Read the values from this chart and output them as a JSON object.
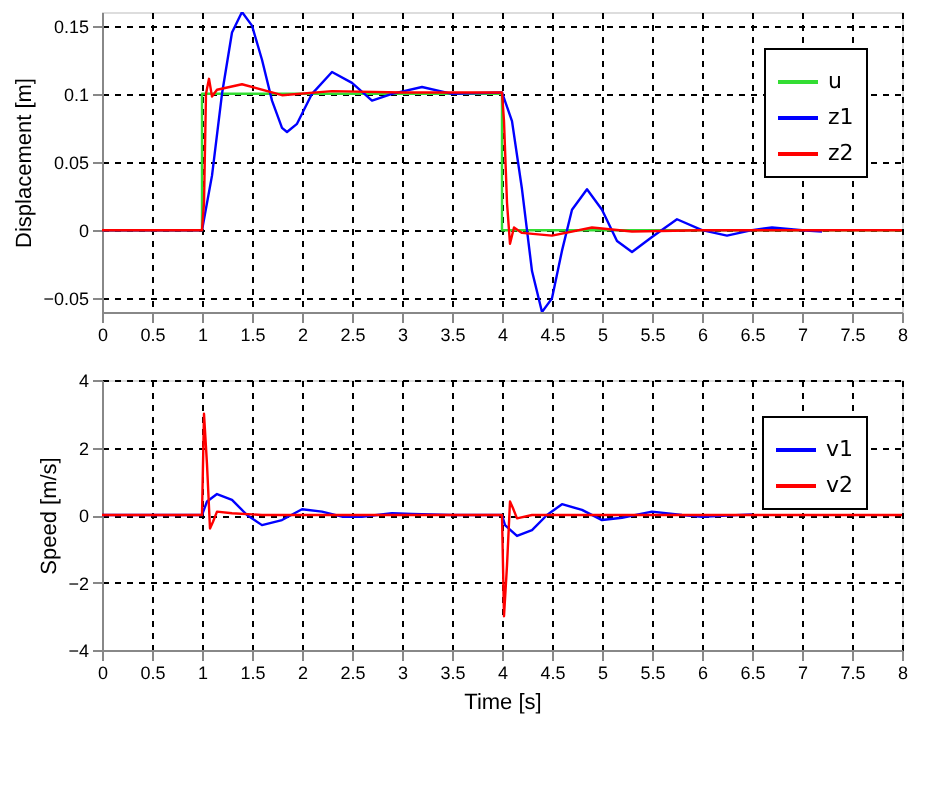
{
  "chart_data": [
    {
      "type": "line",
      "ylabel": "Displacement [m]",
      "xlim": [
        0,
        8
      ],
      "xticks": [
        0,
        0.5,
        1,
        1.5,
        2,
        2.5,
        3,
        3.5,
        4,
        4.5,
        5,
        5.5,
        6,
        6.5,
        7,
        7.5,
        8
      ],
      "ylim": [
        -0.06,
        0.16
      ],
      "yticks": [
        -0.05,
        0,
        0.05,
        0.1,
        0.15
      ],
      "grid": true,
      "legend": "top right",
      "line_style": "solid",
      "marker": "none",
      "series": [
        {
          "name": "u",
          "color": "#33dd33",
          "x": [
            0,
            1,
            1,
            4,
            4,
            8
          ],
          "values": [
            0,
            0,
            0.1,
            0.1,
            0,
            0
          ]
        },
        {
          "name": "z1",
          "color": "#0000ff",
          "x": [
            0,
            1.0,
            1.1,
            1.2,
            1.3,
            1.4,
            1.5,
            1.6,
            1.7,
            1.8,
            1.85,
            1.95,
            2.1,
            2.3,
            2.5,
            2.7,
            2.9,
            3.2,
            3.5,
            4.0,
            4.1,
            4.2,
            4.3,
            4.4,
            4.5,
            4.6,
            4.7,
            4.85,
            5.0,
            5.15,
            5.3,
            5.5,
            5.75,
            6.0,
            6.25,
            6.5,
            6.7,
            7.0,
            7.2
          ],
          "values": [
            0,
            0,
            0.04,
            0.1,
            0.145,
            0.16,
            0.15,
            0.125,
            0.095,
            0.075,
            0.072,
            0.078,
            0.1,
            0.116,
            0.108,
            0.095,
            0.1,
            0.105,
            0.1,
            0.101,
            0.08,
            0.03,
            -0.03,
            -0.06,
            -0.05,
            -0.015,
            0.015,
            0.03,
            0.015,
            -0.008,
            -0.016,
            -0.005,
            0.008,
            0,
            -0.004,
            0,
            0.002,
            0,
            -0.001
          ]
        },
        {
          "name": "z2",
          "color": "#ff0000",
          "x": [
            0,
            1.0,
            1.02,
            1.04,
            1.07,
            1.1,
            1.15,
            1.4,
            1.8,
            2.3,
            3.0,
            4.0,
            4.02,
            4.05,
            4.08,
            4.12,
            4.2,
            4.5,
            4.9,
            5.3,
            6.0,
            8.0
          ],
          "values": [
            0,
            0,
            0.02,
            0.1,
            0.111,
            0.098,
            0.103,
            0.107,
            0.099,
            0.102,
            0.101,
            0.101,
            0.08,
            0.02,
            -0.01,
            0.002,
            -0.002,
            -0.004,
            0.002,
            -0.001,
            0,
            0
          ]
        }
      ]
    },
    {
      "type": "line",
      "xlabel": "Time [s]",
      "ylabel": "Speed [m/s]",
      "xlim": [
        0,
        8
      ],
      "xticks": [
        0,
        0.5,
        1,
        1.5,
        2,
        2.5,
        3,
        3.5,
        4,
        4.5,
        5,
        5.5,
        6,
        6.5,
        7,
        7.5,
        8
      ],
      "ylim": [
        -4,
        4
      ],
      "yticks": [
        -4,
        -2,
        0,
        2,
        4
      ],
      "grid": true,
      "legend": "top right",
      "line_style": "solid",
      "marker": "none",
      "series": [
        {
          "name": "v1",
          "color": "#0000ff",
          "x": [
            0,
            1.0,
            1.05,
            1.15,
            1.3,
            1.45,
            1.6,
            1.8,
            2.0,
            2.2,
            2.4,
            2.6,
            2.9,
            3.1,
            3.5,
            4.0,
            4.03,
            4.15,
            4.3,
            4.45,
            4.6,
            4.8,
            5.0,
            5.2,
            5.5,
            5.8,
            6.0,
            6.5
          ],
          "values": [
            0,
            0,
            0.4,
            0.62,
            0.45,
            0,
            -0.3,
            -0.15,
            0.17,
            0.1,
            -0.05,
            -0.05,
            0.05,
            0.03,
            0,
            0,
            -0.3,
            -0.62,
            -0.45,
            0,
            0.32,
            0.15,
            -0.15,
            -0.08,
            0.1,
            0,
            -0.05,
            0.02
          ]
        },
        {
          "name": "v2",
          "color": "#ff0000",
          "x": [
            0,
            1.0,
            1.02,
            1.05,
            1.08,
            1.11,
            1.15,
            1.3,
            1.6,
            4.0,
            4.02,
            4.05,
            4.08,
            4.11,
            4.15,
            4.3,
            8.0
          ],
          "values": [
            0,
            0,
            3.0,
            1.5,
            -0.4,
            -0.2,
            0.1,
            0.05,
            0,
            0,
            -3.0,
            -1.5,
            0.4,
            0.2,
            -0.1,
            0,
            0
          ]
        }
      ]
    }
  ]
}
